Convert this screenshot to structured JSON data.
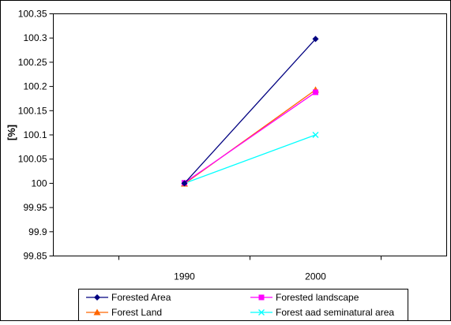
{
  "chart_data": {
    "type": "line",
    "title": "",
    "xlabel": "",
    "ylabel": "[%]",
    "categories": [
      "1990",
      "2000"
    ],
    "ylim": [
      99.85,
      100.35
    ],
    "yticks": [
      "100.35",
      "100.3",
      "100.25",
      "100.2",
      "100.15",
      "100.1",
      "100.05",
      "100",
      "99.95",
      "99.9",
      "99.85"
    ],
    "grid": false,
    "legend_position": "bottom",
    "series": [
      {
        "name": "Forested Area",
        "values": [
          100,
          100.298
        ],
        "color": "#000080",
        "marker": "diamond"
      },
      {
        "name": "Forested landscape",
        "values": [
          100.001,
          100.188
        ],
        "color": "#ff00ff",
        "marker": "square"
      },
      {
        "name": "Forest Land",
        "values": [
          99.999,
          100.193
        ],
        "color": "#ff6600",
        "marker": "triangle"
      },
      {
        "name": "Forest aad seminatural area",
        "values": [
          100,
          100.1
        ],
        "color": "#00ffff",
        "marker": "x"
      }
    ]
  }
}
